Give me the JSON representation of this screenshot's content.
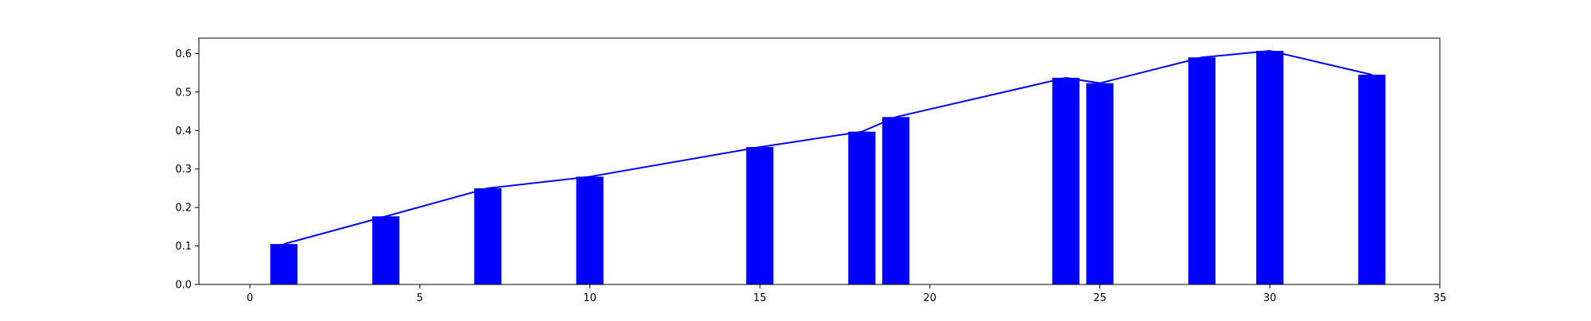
{
  "chart_data": {
    "type": "bar",
    "title": "",
    "xlabel": "",
    "ylabel": "",
    "xlim": [
      -1.5,
      35
    ],
    "ylim": [
      0,
      0.64
    ],
    "grid": false,
    "xticks": [
      0,
      5,
      10,
      15,
      20,
      25,
      30,
      35
    ],
    "yticks": [
      0.0,
      0.1,
      0.2,
      0.3,
      0.4,
      0.5,
      0.6
    ],
    "xtick_labels": [
      "0",
      "5",
      "10",
      "15",
      "20",
      "25",
      "30",
      "35"
    ],
    "ytick_labels": [
      "0.0",
      "0.1",
      "0.2",
      "0.3",
      "0.4",
      "0.5",
      "0.6"
    ],
    "bar_width": 0.8,
    "bar_color": "#0000ff",
    "line_color": "#0000ff",
    "x": [
      1,
      4,
      7,
      10,
      15,
      18,
      19,
      24,
      25,
      28,
      30,
      33
    ],
    "values": [
      0.105,
      0.177,
      0.25,
      0.28,
      0.357,
      0.397,
      0.435,
      0.537,
      0.523,
      0.59,
      0.607,
      0.545
    ]
  }
}
